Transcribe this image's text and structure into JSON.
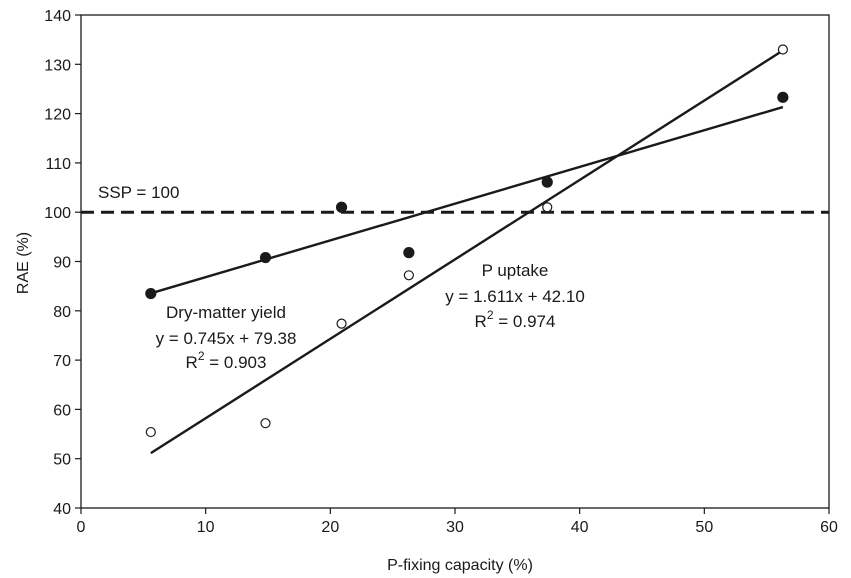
{
  "chart_data": {
    "type": "scatter",
    "xlabel": "P-fixing capacity (%)",
    "ylabel": "RAE (%)",
    "xlim": [
      0,
      60
    ],
    "ylim": [
      40,
      140
    ],
    "xticks": [
      0,
      10,
      20,
      30,
      40,
      50,
      60
    ],
    "yticks": [
      40,
      50,
      60,
      70,
      80,
      90,
      100,
      110,
      120,
      130,
      140
    ],
    "grid": false,
    "series": [
      {
        "name": "Dry-matter yield",
        "marker": "filled-circle",
        "x": [
          5.6,
          14.8,
          20.9,
          26.3,
          37.4,
          56.3
        ],
        "y": [
          83.5,
          90.8,
          101.0,
          91.8,
          106.1,
          123.3
        ],
        "fit": {
          "slope": 0.745,
          "intercept": 79.38,
          "x_range": [
            5.6,
            56.3
          ]
        }
      },
      {
        "name": "P uptake",
        "marker": "open-circle",
        "x": [
          5.6,
          14.8,
          20.9,
          26.3,
          37.4,
          56.3
        ],
        "y": [
          55.4,
          57.2,
          77.4,
          87.2,
          101.0,
          133.0
        ],
        "fit": {
          "slope": 1.611,
          "intercept": 42.1,
          "x_range": [
            5.6,
            56.3
          ]
        }
      }
    ],
    "reference_line": {
      "y": 100,
      "style": "dashed",
      "label": "SSP = 100"
    },
    "annotations": {
      "dry_matter": {
        "title": "Dry-matter yield",
        "equation": "y = 0.745x + 79.38",
        "r2_prefix": "R",
        "r2_sup": "2",
        "r2_value": " = 0.903"
      },
      "p_uptake": {
        "title": "P uptake",
        "equation": "y = 1.611x + 42.10",
        "r2_prefix": "R",
        "r2_sup": "2",
        "r2_value": " = 0.974"
      }
    },
    "colors": {
      "line": "#1a1a1a",
      "filled_marker": "#1a1a1a",
      "open_marker_fill": "#ffffff"
    }
  }
}
